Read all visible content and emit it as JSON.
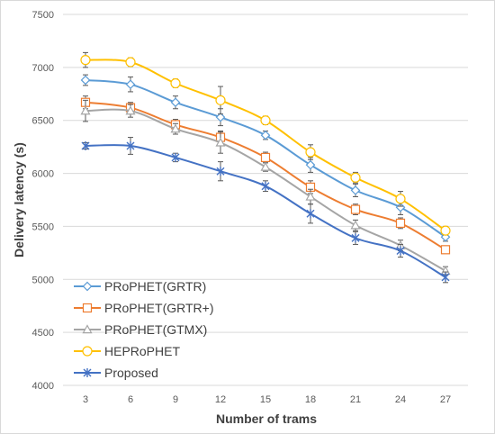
{
  "chart_data": {
    "type": "line",
    "xlabel": "Number of trams",
    "ylabel": "Delivery latency (s)",
    "x": [
      3,
      6,
      9,
      12,
      15,
      18,
      21,
      24,
      27
    ],
    "ylim": [
      4000,
      7500
    ],
    "yticks": [
      4000,
      4500,
      5000,
      5500,
      6000,
      6500,
      7000,
      7500
    ],
    "grid": "horizontal",
    "legend_placement": "bottom-left",
    "series": [
      {
        "name": "PRoPHET(GRTR)",
        "color": "#5b9bd5",
        "marker": "diamond",
        "values": [
          6880,
          6840,
          6670,
          6530,
          6360,
          6080,
          5840,
          5680,
          5400
        ],
        "error": [
          50,
          70,
          60,
          80,
          40,
          70,
          60,
          70,
          40
        ]
      },
      {
        "name": "PRoPHET(GRTR+)",
        "color": "#ed7d31",
        "marker": "square",
        "values": [
          6670,
          6620,
          6460,
          6340,
          6150,
          5870,
          5660,
          5530,
          5280
        ],
        "error": [
          60,
          50,
          50,
          60,
          50,
          60,
          50,
          50,
          30
        ]
      },
      {
        "name": "PRoPHET(GTMX)",
        "color": "#a5a5a5",
        "marker": "triangle",
        "values": [
          6590,
          6590,
          6420,
          6290,
          6060,
          5780,
          5510,
          5320,
          5080
        ],
        "error": [
          100,
          60,
          50,
          100,
          40,
          70,
          50,
          50,
          40
        ]
      },
      {
        "name": "HEPRoPHET",
        "color": "#ffc000",
        "marker": "circle",
        "values": [
          7070,
          7050,
          6850,
          6690,
          6500,
          6200,
          5960,
          5760,
          5460
        ],
        "error": [
          70,
          40,
          40,
          130,
          40,
          70,
          50,
          70,
          40
        ]
      },
      {
        "name": "Proposed",
        "color": "#4472c4",
        "marker": "star",
        "values": [
          6260,
          6260,
          6150,
          6020,
          5880,
          5620,
          5390,
          5270,
          5020
        ],
        "error": [
          30,
          80,
          40,
          90,
          50,
          90,
          60,
          60,
          50
        ]
      }
    ]
  }
}
